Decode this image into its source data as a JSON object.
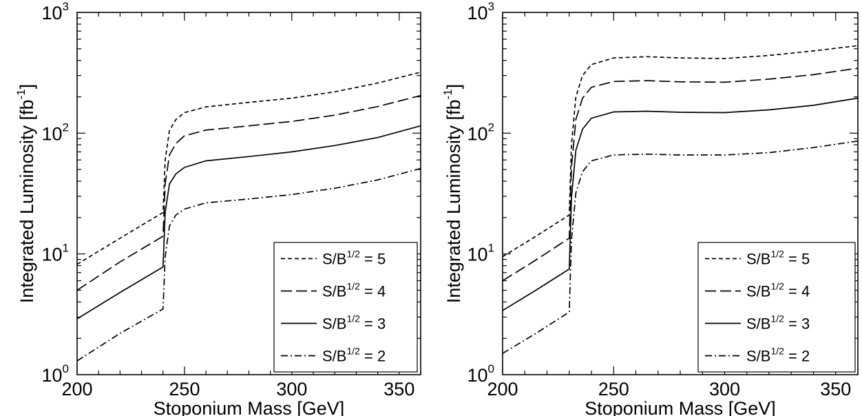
{
  "colors": {
    "line": "#000000",
    "background": "#ffffff"
  },
  "chart_data": [
    {
      "type": "line",
      "title": "",
      "xlabel": "Stoponium Mass   [GeV]",
      "ylabel": "Integrated Luminosity  [fb",
      "ylabel_exp": "-1",
      "ylabel_close": "]",
      "xlim": [
        200,
        360
      ],
      "ylim": [
        1,
        1000
      ],
      "yscale": "log",
      "xticks": [
        "200",
        "250",
        "300",
        "350"
      ],
      "yticks": [
        {
          "base": "10",
          "exp": "0",
          "value": 1
        },
        {
          "base": "10",
          "exp": "1",
          "value": 10
        },
        {
          "base": "10",
          "exp": "2",
          "value": 100
        },
        {
          "base": "10",
          "exp": "3",
          "value": 1000
        }
      ],
      "legend_position": "bottom-right",
      "series": [
        {
          "name": "S/B",
          "name_exp": "1/2",
          "name_tail": " = 5",
          "dash": "6,4",
          "x": [
            200,
            220,
            240,
            241,
            243,
            246,
            250,
            260,
            280,
            300,
            320,
            340,
            360
          ],
          "y": [
            8.2,
            13.5,
            22,
            60,
            105,
            130,
            148,
            165,
            180,
            195,
            220,
            260,
            320
          ]
        },
        {
          "name": "S/B",
          "name_exp": "1/2",
          "name_tail": " = 4",
          "dash": "16,6",
          "x": [
            200,
            220,
            240,
            241,
            243,
            246,
            250,
            260,
            280,
            300,
            320,
            340,
            360
          ],
          "y": [
            5.0,
            8.6,
            14,
            38,
            66,
            82,
            95,
            106,
            115,
            125,
            141,
            166,
            205
          ]
        },
        {
          "name": "S/B",
          "name_exp": "1/2",
          "name_tail": " = 3",
          "dash": "",
          "x": [
            200,
            220,
            240,
            241,
            243,
            246,
            250,
            260,
            280,
            300,
            320,
            340,
            360
          ],
          "y": [
            2.9,
            4.8,
            7.8,
            22,
            38,
            46,
            52,
            59,
            64,
            70,
            79,
            92,
            115
          ]
        },
        {
          "name": "S/B",
          "name_exp": "1/2",
          "name_tail": " = 2",
          "dash": "10,4,2,4",
          "x": [
            200,
            220,
            240,
            241,
            243,
            246,
            250,
            260,
            280,
            300,
            320,
            340,
            360
          ],
          "y": [
            1.3,
            2.2,
            3.5,
            9.5,
            17,
            21,
            23.5,
            26.5,
            28.5,
            31,
            35,
            41,
            51
          ]
        }
      ]
    },
    {
      "type": "line",
      "title": "",
      "xlabel": "Stoponium Mass   [GeV]",
      "ylabel": "Integrated Luminosity  [fb",
      "ylabel_exp": "-1",
      "ylabel_close": "]",
      "xlim": [
        200,
        360
      ],
      "ylim": [
        1,
        1000
      ],
      "yscale": "log",
      "xticks": [
        "200",
        "250",
        "300",
        "350"
      ],
      "yticks": [
        {
          "base": "10",
          "exp": "0",
          "value": 1
        },
        {
          "base": "10",
          "exp": "1",
          "value": 10
        },
        {
          "base": "10",
          "exp": "2",
          "value": 100
        },
        {
          "base": "10",
          "exp": "3",
          "value": 1000
        }
      ],
      "legend_position": "bottom-right",
      "series": [
        {
          "name": "S/B",
          "name_exp": "1/2",
          "name_tail": " = 5",
          "dash": "6,4",
          "x": [
            200,
            215,
            230,
            231,
            233,
            236,
            240,
            250,
            265,
            280,
            300,
            320,
            340,
            360
          ],
          "y": [
            9.5,
            14,
            21,
            80,
            200,
            300,
            370,
            420,
            430,
            420,
            415,
            440,
            480,
            530
          ]
        },
        {
          "name": "S/B",
          "name_exp": "1/2",
          "name_tail": " = 4",
          "dash": "16,6",
          "x": [
            200,
            215,
            230,
            231,
            233,
            236,
            240,
            250,
            265,
            280,
            300,
            320,
            340,
            360
          ],
          "y": [
            6.0,
            8.9,
            13.5,
            52,
            130,
            195,
            240,
            268,
            272,
            266,
            264,
            280,
            305,
            345
          ]
        },
        {
          "name": "S/B",
          "name_exp": "1/2",
          "name_tail": " = 3",
          "dash": "",
          "x": [
            200,
            215,
            230,
            231,
            233,
            236,
            240,
            250,
            265,
            280,
            300,
            320,
            340,
            360
          ],
          "y": [
            3.4,
            5.0,
            7.5,
            29,
            72,
            108,
            133,
            150,
            152,
            149,
            148,
            156,
            170,
            195
          ]
        },
        {
          "name": "S/B",
          "name_exp": "1/2",
          "name_tail": " = 2",
          "dash": "10,4,2,4",
          "x": [
            200,
            215,
            230,
            231,
            233,
            236,
            240,
            250,
            265,
            280,
            300,
            320,
            340,
            360
          ],
          "y": [
            1.5,
            2.2,
            3.3,
            13,
            32,
            48,
            59,
            66,
            67,
            66,
            66,
            69,
            76,
            86
          ]
        }
      ]
    }
  ]
}
